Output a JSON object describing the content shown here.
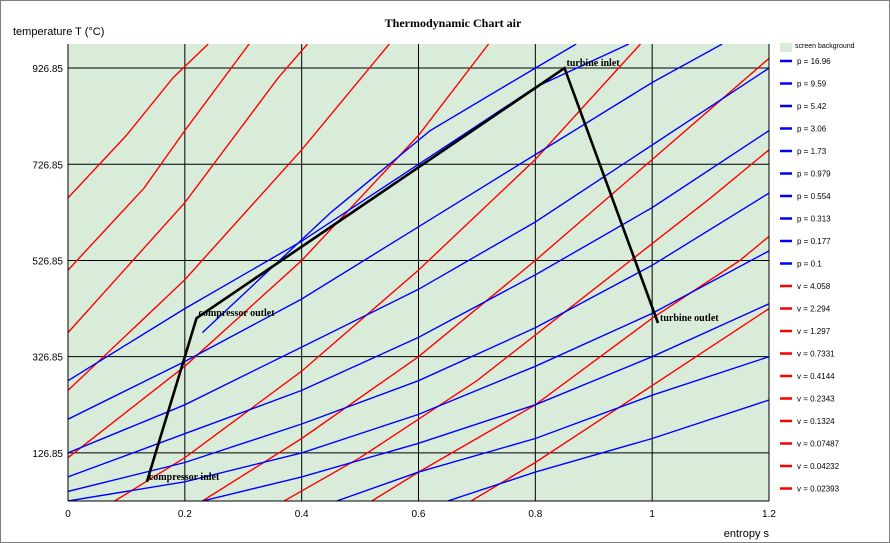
{
  "chart_data": {
    "type": "line",
    "title": "Thermodynamic Chart  air",
    "xlabel": "entropy  s",
    "ylabel": "temperature  T  (°C)",
    "xlim": [
      0,
      1.2
    ],
    "ylim": [
      26.85,
      976.85
    ],
    "xticks": [
      0,
      0.2,
      0.4,
      0.6,
      0.8,
      1,
      1.2
    ],
    "xtick_labels": [
      "0",
      "0.2",
      "0.4",
      "0.6",
      "0.8",
      "1",
      "1.2"
    ],
    "yticks": [
      126.85,
      326.85,
      526.85,
      726.85,
      926.85
    ],
    "ytick_labels": [
      "126.85",
      "326.85",
      "526.85",
      "726.85",
      "926.85"
    ],
    "grid": true,
    "background_color": "#d9ecd9",
    "legend_position": "right",
    "legend": {
      "background_label": "screen background",
      "background_color": "#d9ecd9",
      "entries": [
        {
          "name": "p = 16.96",
          "color": "#0000ff"
        },
        {
          "name": "p = 9.59",
          "color": "#0000ff"
        },
        {
          "name": "p = 5.42",
          "color": "#0000ff"
        },
        {
          "name": "p = 3.06",
          "color": "#0000ff"
        },
        {
          "name": "p = 1.73",
          "color": "#0000ff"
        },
        {
          "name": "p = 0.979",
          "color": "#0000ff"
        },
        {
          "name": "p = 0.554",
          "color": "#0000ff"
        },
        {
          "name": "p = 0.313",
          "color": "#0000ff"
        },
        {
          "name": "p = 0.177",
          "color": "#0000ff"
        },
        {
          "name": "p = 0.1",
          "color": "#0000ff"
        },
        {
          "name": "v = 4.058",
          "color": "#ff0000"
        },
        {
          "name": "v = 2.294",
          "color": "#ff0000"
        },
        {
          "name": "v = 1.297",
          "color": "#ff0000"
        },
        {
          "name": "v = 0.7331",
          "color": "#ff0000"
        },
        {
          "name": "v = 0.4144",
          "color": "#ff0000"
        },
        {
          "name": "v = 0.2343",
          "color": "#ff0000"
        },
        {
          "name": "v = 0.1324",
          "color": "#ff0000"
        },
        {
          "name": "v = 0.07487",
          "color": "#ff0000"
        },
        {
          "name": "v = 0.04232",
          "color": "#ff0000"
        },
        {
          "name": "v = 0.02393",
          "color": "#ff0000"
        }
      ]
    },
    "isobars": [
      {
        "name": "p = 16.96",
        "color": "#0000ff",
        "points": [
          [
            0.23,
            376.85
          ],
          [
            0.45,
            626.85
          ],
          [
            0.62,
            796.85
          ],
          [
            0.8,
            926.85
          ],
          [
            0.87,
            976.85
          ]
        ]
      },
      {
        "name": "p = 9.59",
        "color": "#0000ff",
        "points": [
          [
            0.0,
            276.85
          ],
          [
            0.2,
            426.85
          ],
          [
            0.4,
            566.85
          ],
          [
            0.6,
            726.85
          ],
          [
            0.8,
            886.85
          ],
          [
            0.96,
            976.85
          ]
        ]
      },
      {
        "name": "p = 5.42",
        "color": "#0000ff",
        "points": [
          [
            0.0,
            196.85
          ],
          [
            0.2,
            316.85
          ],
          [
            0.4,
            446.85
          ],
          [
            0.6,
            596.85
          ],
          [
            0.8,
            746.85
          ],
          [
            1.0,
            896.85
          ],
          [
            1.12,
            976.85
          ]
        ]
      },
      {
        "name": "p = 3.06",
        "color": "#0000ff",
        "points": [
          [
            0.0,
            126.85
          ],
          [
            0.2,
            226.85
          ],
          [
            0.4,
            346.85
          ],
          [
            0.6,
            466.85
          ],
          [
            0.8,
            606.85
          ],
          [
            1.0,
            766.85
          ],
          [
            1.2,
            926.85
          ]
        ]
      },
      {
        "name": "p = 1.73",
        "color": "#0000ff",
        "points": [
          [
            0.0,
            76.85
          ],
          [
            0.2,
            166.85
          ],
          [
            0.4,
            256.85
          ],
          [
            0.6,
            366.85
          ],
          [
            0.8,
            496.85
          ],
          [
            1.0,
            636.85
          ],
          [
            1.2,
            796.85
          ]
        ]
      },
      {
        "name": "p = 0.979",
        "color": "#0000ff",
        "points": [
          [
            0.0,
            46.85
          ],
          [
            0.2,
            106.85
          ],
          [
            0.4,
            186.85
          ],
          [
            0.6,
            276.85
          ],
          [
            0.8,
            386.85
          ],
          [
            1.0,
            516.85
          ],
          [
            1.2,
            666.85
          ]
        ]
      },
      {
        "name": "p = 0.554",
        "color": "#0000ff",
        "points": [
          [
            0.0,
            26.85
          ],
          [
            0.2,
            66.85
          ],
          [
            0.4,
            126.85
          ],
          [
            0.6,
            206.85
          ],
          [
            0.8,
            306.85
          ],
          [
            1.0,
            416.85
          ],
          [
            1.2,
            546.85
          ]
        ]
      },
      {
        "name": "p = 0.313",
        "color": "#0000ff",
        "points": [
          [
            0.23,
            26.85
          ],
          [
            0.4,
            76.85
          ],
          [
            0.6,
            146.85
          ],
          [
            0.8,
            226.85
          ],
          [
            1.0,
            326.85
          ],
          [
            1.2,
            436.85
          ]
        ]
      },
      {
        "name": "p = 0.177",
        "color": "#0000ff",
        "points": [
          [
            0.46,
            26.85
          ],
          [
            0.6,
            86.85
          ],
          [
            0.8,
            156.85
          ],
          [
            1.0,
            246.85
          ],
          [
            1.2,
            326.85
          ]
        ]
      },
      {
        "name": "p = 0.1",
        "color": "#0000ff",
        "points": [
          [
            0.65,
            26.85
          ],
          [
            0.8,
            86.85
          ],
          [
            1.0,
            156.85
          ],
          [
            1.2,
            236.85
          ]
        ]
      }
    ],
    "isochores": [
      {
        "name": "v = 4.058",
        "color": "#ff0000",
        "points": [
          [
            0.69,
            26.85
          ],
          [
            0.8,
            106.85
          ],
          [
            0.95,
            226.85
          ],
          [
            1.1,
            346.85
          ],
          [
            1.2,
            426.85
          ]
        ]
      },
      {
        "name": "v = 2.294",
        "color": "#ff0000",
        "points": [
          [
            0.52,
            26.85
          ],
          [
            0.6,
            86.85
          ],
          [
            0.8,
            226.85
          ],
          [
            1.0,
            406.85
          ],
          [
            1.15,
            526.85
          ],
          [
            1.2,
            576.85
          ]
        ]
      },
      {
        "name": "v = 1.297",
        "color": "#ff0000",
        "points": [
          [
            0.37,
            26.85
          ],
          [
            0.5,
            116.85
          ],
          [
            0.7,
            276.85
          ],
          [
            0.9,
            466.85
          ],
          [
            1.1,
            656.85
          ],
          [
            1.2,
            756.85
          ]
        ]
      },
      {
        "name": "v = 0.7331",
        "color": "#ff0000",
        "points": [
          [
            0.23,
            26.85
          ],
          [
            0.4,
            156.85
          ],
          [
            0.6,
            326.85
          ],
          [
            0.8,
            526.85
          ],
          [
            1.0,
            736.85
          ],
          [
            1.2,
            946.85
          ]
        ]
      },
      {
        "name": "v = 0.4144",
        "color": "#ff0000",
        "points": [
          [
            0.08,
            26.85
          ],
          [
            0.2,
            116.85
          ],
          [
            0.4,
            296.85
          ],
          [
            0.6,
            506.85
          ],
          [
            0.8,
            736.85
          ],
          [
            0.98,
            976.85
          ]
        ]
      },
      {
        "name": "v = 0.2343",
        "color": "#ff0000",
        "points": [
          [
            0.0,
            116.85
          ],
          [
            0.2,
            306.85
          ],
          [
            0.4,
            526.85
          ],
          [
            0.6,
            786.85
          ],
          [
            0.72,
            976.85
          ]
        ]
      },
      {
        "name": "v = 0.1324",
        "color": "#ff0000",
        "points": [
          [
            0.0,
            256.85
          ],
          [
            0.2,
            486.85
          ],
          [
            0.4,
            756.85
          ],
          [
            0.55,
            976.85
          ]
        ]
      },
      {
        "name": "v = 0.07487",
        "color": "#ff0000",
        "points": [
          [
            0.0,
            376.85
          ],
          [
            0.2,
            646.85
          ],
          [
            0.36,
            906.85
          ],
          [
            0.41,
            976.85
          ]
        ]
      },
      {
        "name": "v = 0.04232",
        "color": "#ff0000",
        "points": [
          [
            0.0,
            506.85
          ],
          [
            0.13,
            676.85
          ],
          [
            0.2,
            796.85
          ],
          [
            0.31,
            976.85
          ]
        ]
      },
      {
        "name": "v = 0.02393",
        "color": "#ff0000",
        "points": [
          [
            0.0,
            656.85
          ],
          [
            0.1,
            786.85
          ],
          [
            0.18,
            906.85
          ],
          [
            0.24,
            976.85
          ]
        ]
      }
    ],
    "cycle": {
      "color": "#000000",
      "points": [
        [
          0.135,
          66.85
        ],
        [
          0.22,
          406.85
        ],
        [
          0.85,
          926.85
        ],
        [
          1.01,
          396.85
        ]
      ],
      "annotations": [
        {
          "label": "compressor inlet",
          "x": 0.135,
          "y": 66.85
        },
        {
          "label": "compressor outlet",
          "x": 0.22,
          "y": 406.85
        },
        {
          "label": "turbine inlet",
          "x": 0.85,
          "y": 926.85
        },
        {
          "label": "turbine outlet",
          "x": 1.01,
          "y": 396.85
        }
      ]
    }
  }
}
